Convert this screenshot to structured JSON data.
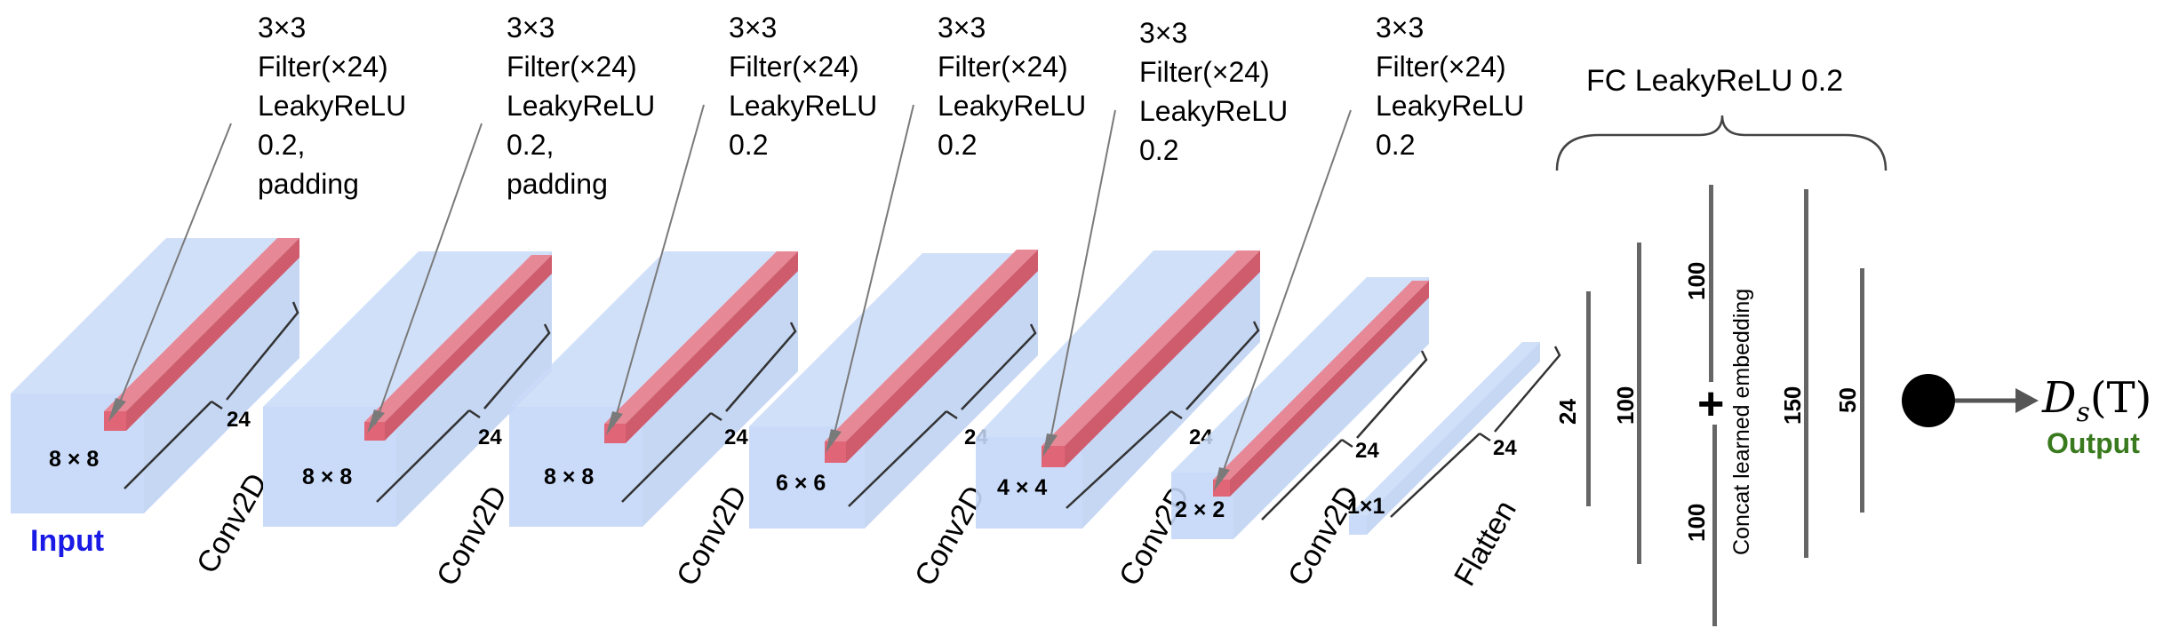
{
  "input_label": "Input",
  "output_label": "Output",
  "output_node": {
    "symbol": "D",
    "subscript": "s",
    "argument": "(T)"
  },
  "blocks": [
    {
      "face_label": "8 × 8",
      "depth_label": "24",
      "layer_label": "Conv2D",
      "filter_lines": [
        "3×3",
        "Filter(×24)",
        "LeakyReLU",
        "0.2,",
        "padding"
      ]
    },
    {
      "face_label": "8 × 8",
      "depth_label": "24",
      "layer_label": "Conv2D",
      "filter_lines": [
        "3×3",
        "Filter(×24)",
        "LeakyReLU",
        "0.2,",
        "padding"
      ]
    },
    {
      "face_label": "8 × 8",
      "depth_label": "24",
      "layer_label": "Conv2D",
      "filter_lines": [
        "3×3",
        "Filter(×24)",
        "LeakyReLU",
        "0.2"
      ]
    },
    {
      "face_label": "6 × 6",
      "depth_label": "24",
      "layer_label": "Conv2D",
      "filter_lines": [
        "3×3",
        "Filter(×24)",
        "LeakyReLU",
        "0.2"
      ]
    },
    {
      "face_label": "4 × 4",
      "depth_label": "24",
      "layer_label": "Conv2D",
      "filter_lines": [
        "3×3",
        "Filter(×24)",
        "LeakyReLU",
        "0.2"
      ]
    },
    {
      "face_label": "2 × 2",
      "depth_label": "24",
      "layer_label": "Conv2D",
      "filter_lines": [
        "3×3",
        "Filter(×24)",
        "LeakyReLU",
        "0.2"
      ]
    },
    {
      "face_label": "1×1",
      "depth_label": "24",
      "layer_label": "Flatten",
      "filter_lines": []
    }
  ],
  "fc": {
    "title": "FC LeakyReLU 0.2",
    "layer_sizes": [
      "24",
      "100",
      "100",
      "100",
      "150",
      "50"
    ],
    "concat_label": "Concat learned embedding",
    "plus": "+"
  },
  "colors": {
    "block": "#c9daf8",
    "filter": "#e06677",
    "line": "#555555"
  }
}
